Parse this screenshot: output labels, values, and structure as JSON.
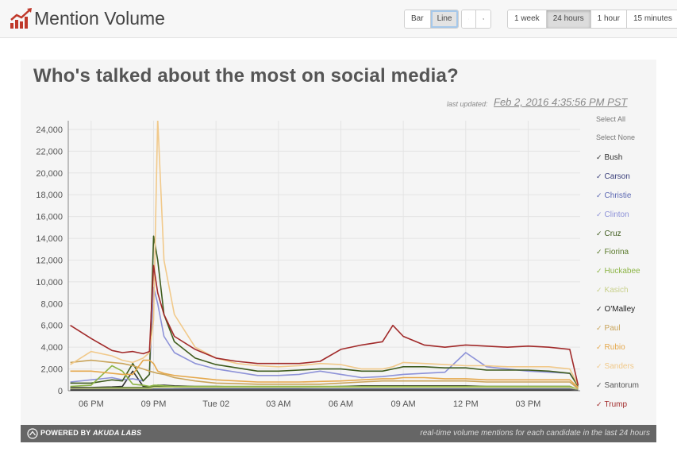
{
  "app": {
    "title": "Mention Volume"
  },
  "toolbar": {
    "chart_types": [
      {
        "label": "Bar"
      },
      {
        "label": "Line"
      }
    ],
    "sort_icons": [
      "sort-ascending-icon",
      "sort-descending-icon"
    ],
    "ranges": [
      {
        "label": "1 week"
      },
      {
        "label": "24 hours"
      },
      {
        "label": "1 hour"
      },
      {
        "label": "15 minutes"
      }
    ]
  },
  "main": {
    "heading": "Who's talked about the most on social media?",
    "last_updated_label": "last updated:",
    "last_updated_value": "Feb 2, 2016 4:35:56 PM PST"
  },
  "legend": {
    "select_all": "Select All",
    "select_none": "Select None",
    "check": "✓"
  },
  "footer": {
    "powered_prefix": "POWERED BY",
    "brand": "AKUDA LABS",
    "note": "real-time volume mentions for each candidate in the last 24 hours"
  },
  "chart_data": {
    "type": "line",
    "title": "",
    "xlabel": "",
    "ylabel": "",
    "ylim": [
      0,
      24800
    ],
    "yticks": [
      0,
      2000,
      4000,
      6000,
      8000,
      10000,
      12000,
      14000,
      16000,
      18000,
      20000,
      22000,
      24000
    ],
    "ytick_labels": [
      "0",
      "2,000",
      "4,000",
      "6,000",
      "8,000",
      "10,000",
      "12,000",
      "14,000",
      "16,000",
      "18,000",
      "20,000",
      "22,000",
      "24,000"
    ],
    "xticks": [
      6,
      9,
      12,
      15,
      18,
      21,
      24,
      27
    ],
    "xtick_labels": [
      "06 PM",
      "09 PM",
      "Tue 02",
      "03 AM",
      "06 AM",
      "09 AM",
      "12 PM",
      "03 PM"
    ],
    "xlim": [
      4.9,
      29.5
    ],
    "grid": true,
    "legend_position": "right",
    "x": [
      5,
      6,
      7,
      7.5,
      8,
      8.5,
      8.8,
      9,
      9.2,
      9.5,
      10,
      11,
      12,
      13,
      14,
      15,
      16,
      17,
      18,
      19,
      20,
      20.5,
      21,
      22,
      23,
      24,
      25,
      26,
      27,
      28,
      29,
      29.4
    ],
    "series": [
      {
        "name": "Bush",
        "color": "#333333",
        "values": [
          300,
          300,
          350,
          400,
          1800,
          400,
          350,
          400,
          500,
          500,
          450,
          400,
          400,
          350,
          350,
          350,
          350,
          350,
          400,
          450,
          450,
          450,
          450,
          450,
          450,
          450,
          400,
          400,
          400,
          400,
          400,
          100
        ]
      },
      {
        "name": "Carson",
        "color": "#3a3f7a",
        "values": [
          150,
          150,
          150,
          150,
          150,
          150,
          300,
          400,
          500,
          400,
          300,
          250,
          250,
          250,
          250,
          250,
          250,
          300,
          300,
          300,
          300,
          300,
          300,
          300,
          300,
          300,
          300,
          300,
          300,
          300,
          300,
          100
        ]
      },
      {
        "name": "Christie",
        "color": "#5b67b2",
        "values": [
          100,
          100,
          100,
          100,
          100,
          100,
          100,
          150,
          150,
          150,
          150,
          150,
          150,
          150,
          150,
          150,
          150,
          150,
          150,
          150,
          150,
          150,
          150,
          150,
          150,
          150,
          150,
          150,
          150,
          150,
          150,
          50
        ]
      },
      {
        "name": "Clinton",
        "color": "#8d92d8",
        "values": [
          800,
          1000,
          1200,
          1000,
          1100,
          900,
          1500,
          9500,
          8000,
          5000,
          3500,
          2500,
          2000,
          1700,
          1400,
          1400,
          1500,
          1800,
          1500,
          1200,
          1300,
          1400,
          1500,
          1600,
          1700,
          3500,
          2200,
          2000,
          1800,
          1700,
          1600,
          500
        ]
      },
      {
        "name": "Cruz",
        "color": "#3f5c1e",
        "values": [
          700,
          700,
          1000,
          900,
          2500,
          900,
          1500,
          14200,
          12000,
          7000,
          4500,
          3000,
          2400,
          2100,
          1800,
          1800,
          1900,
          2000,
          2000,
          1800,
          1800,
          2000,
          2200,
          2200,
          2100,
          2100,
          1900,
          1900,
          1900,
          1800,
          1600,
          400
        ]
      },
      {
        "name": "Fiorina",
        "color": "#5a7a2c",
        "values": [
          200,
          250,
          300,
          300,
          300,
          300,
          300,
          400,
          400,
          350,
          350,
          300,
          300,
          300,
          300,
          300,
          300,
          300,
          300,
          300,
          300,
          300,
          300,
          300,
          300,
          300,
          300,
          300,
          300,
          300,
          300,
          100
        ]
      },
      {
        "name": "Huckabee",
        "color": "#8db547",
        "values": [
          400,
          500,
          2300,
          1800,
          600,
          500,
          400,
          500,
          500,
          450,
          400,
          400,
          400,
          400,
          400,
          400,
          400,
          400,
          400,
          400,
          400,
          400,
          400,
          400,
          400,
          400,
          400,
          400,
          400,
          400,
          400,
          100
        ]
      },
      {
        "name": "Kasich",
        "color": "#c8d08a",
        "values": [
          200,
          200,
          200,
          200,
          200,
          200,
          200,
          300,
          300,
          300,
          300,
          300,
          300,
          300,
          300,
          300,
          300,
          300,
          300,
          300,
          300,
          300,
          300,
          300,
          300,
          300,
          300,
          300,
          300,
          300,
          300,
          100
        ]
      },
      {
        "name": "O'Malley",
        "color": "#222222",
        "values": [
          50,
          50,
          50,
          50,
          50,
          50,
          50,
          50,
          50,
          50,
          50,
          50,
          50,
          50,
          50,
          50,
          50,
          50,
          50,
          50,
          50,
          50,
          50,
          50,
          50,
          50,
          50,
          50,
          50,
          50,
          50,
          20
        ]
      },
      {
        "name": "Paul",
        "color": "#c9a45a",
        "values": [
          2600,
          2800,
          2600,
          2500,
          2300,
          2000,
          1800,
          1700,
          1600,
          1500,
          1200,
          900,
          700,
          650,
          600,
          600,
          600,
          600,
          700,
          800,
          900,
          900,
          900,
          900,
          900,
          900,
          800,
          800,
          800,
          800,
          800,
          200
        ]
      },
      {
        "name": "Rubio",
        "color": "#e5a84c",
        "values": [
          1800,
          1800,
          1600,
          1500,
          1500,
          2800,
          2800,
          2500,
          1800,
          1600,
          1400,
          1200,
          1000,
          900,
          800,
          800,
          800,
          850,
          900,
          1000,
          1100,
          1100,
          1200,
          1200,
          1100,
          1100,
          1000,
          1000,
          1000,
          1000,
          1000,
          300
        ]
      },
      {
        "name": "Sanders",
        "color": "#f1c98a",
        "values": [
          2400,
          3600,
          3200,
          2800,
          2600,
          3000,
          3500,
          6500,
          25000,
          12000,
          7000,
          4000,
          3000,
          2500,
          2300,
          2200,
          2300,
          2500,
          2400,
          2000,
          2000,
          2200,
          2600,
          2500,
          2400,
          2300,
          2300,
          2200,
          2200,
          2200,
          2000,
          500
        ]
      },
      {
        "name": "Santorum",
        "color": "#555555",
        "values": [
          100,
          100,
          100,
          100,
          100,
          100,
          100,
          100,
          100,
          100,
          100,
          100,
          100,
          100,
          100,
          100,
          100,
          100,
          100,
          100,
          100,
          100,
          100,
          100,
          100,
          100,
          100,
          100,
          100,
          100,
          100,
          30
        ]
      },
      {
        "name": "Trump",
        "color": "#a12a2a",
        "values": [
          6000,
          4800,
          3700,
          3500,
          3600,
          3400,
          3600,
          11500,
          9000,
          7000,
          5000,
          3800,
          3000,
          2700,
          2500,
          2500,
          2500,
          2700,
          3800,
          4200,
          4500,
          6000,
          5000,
          4200,
          4000,
          4200,
          4100,
          4000,
          4100,
          4000,
          3800,
          500
        ]
      }
    ]
  }
}
